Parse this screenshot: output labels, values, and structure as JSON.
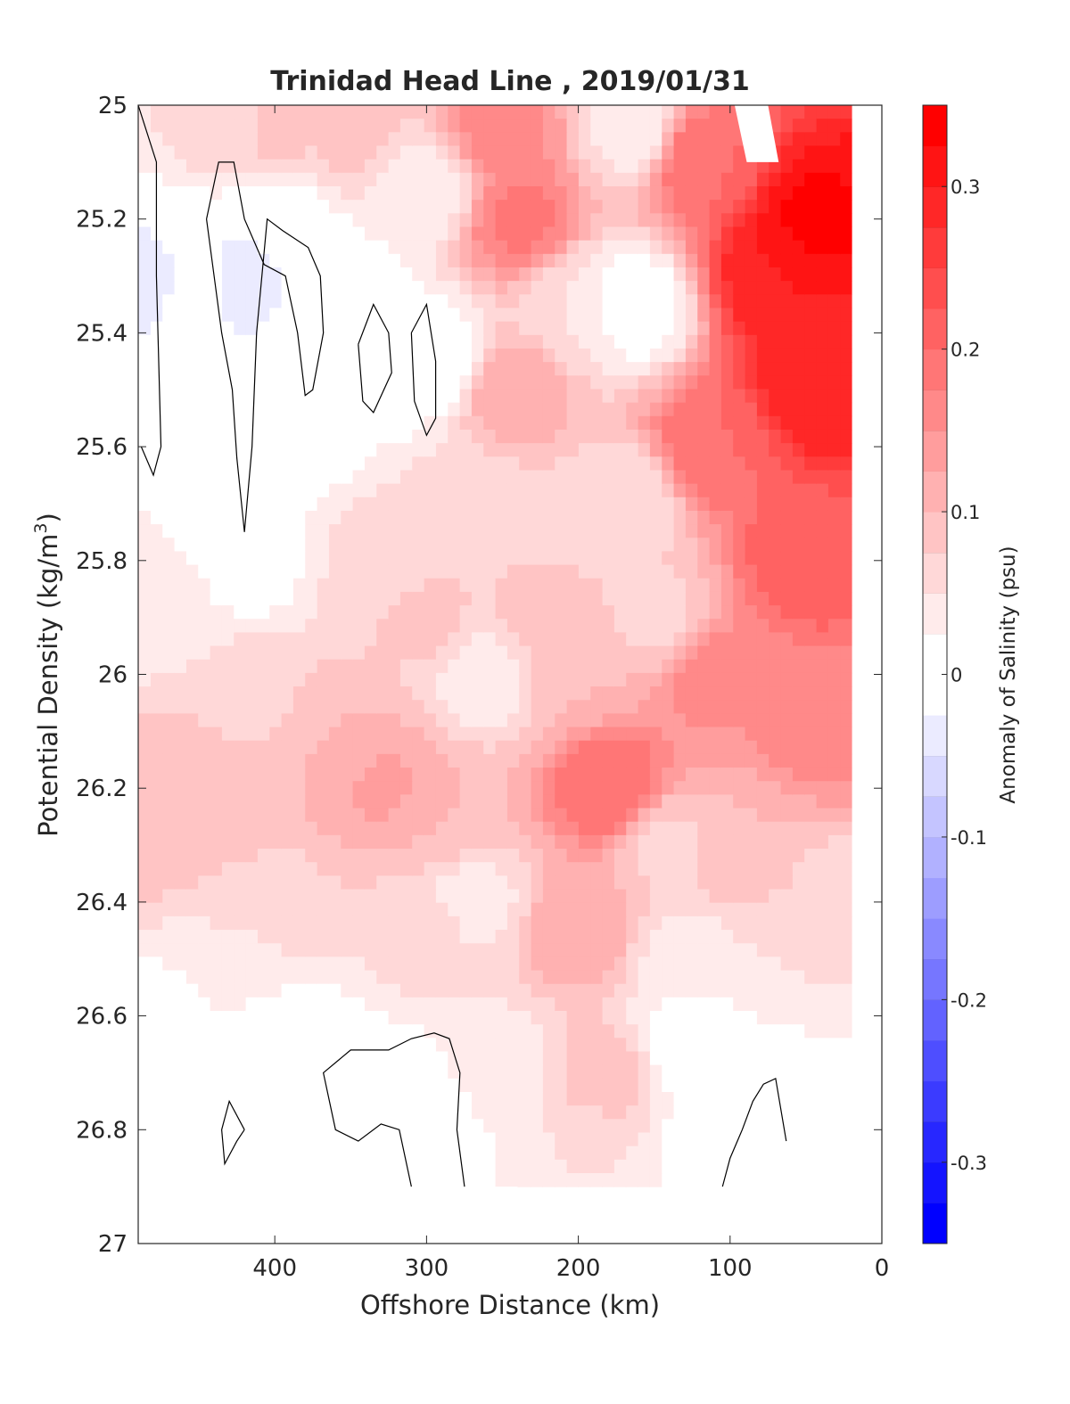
{
  "chart_data": {
    "type": "heatmap",
    "title": "Trinidad Head Line , 2019/01/31",
    "xlabel": "Offshore Distance (km)",
    "ylabel": "Potential Density (kg/m",
    "ylabel_sup": "3",
    "ylabel_close": ")",
    "xlim": [
      490,
      0
    ],
    "ylim": [
      25,
      27
    ],
    "y_reversed": true,
    "x_reversed": true,
    "xticks": [
      400,
      300,
      200,
      100,
      0
    ],
    "xtick_labels": [
      "400",
      "300",
      "200",
      "100",
      "0"
    ],
    "yticks": [
      25,
      25.2,
      25.4,
      25.6,
      25.8,
      26,
      26.2,
      26.4,
      26.6,
      26.8,
      27
    ],
    "ytick_labels": [
      "25",
      "25.2",
      "25.4",
      "25.6",
      "25.8",
      "26",
      "26.2",
      "26.4",
      "26.6",
      "26.8",
      "27"
    ],
    "data_x_extent": [
      20,
      490
    ],
    "data_y_extent": [
      25,
      26.9
    ],
    "grid": false,
    "colorbar": {
      "label": "Anomaly of Salinity (psu)",
      "range": [
        -0.35,
        0.35
      ],
      "levels": 28,
      "ticks": [
        0.3,
        0.2,
        0.1,
        0,
        -0.1,
        -0.2,
        -0.3
      ],
      "tick_labels": [
        "0.3",
        "0.2",
        "0.1",
        "0",
        "-0.1",
        "-0.2",
        "-0.3"
      ],
      "colors": {
        "low": "#0000ff",
        "mid": "#ffffff",
        "high": "#ff0000"
      }
    },
    "zero_contour_color": "#000000",
    "anchor_points": [
      {
        "x": 485,
        "y": 25.3,
        "v": -0.03
      },
      {
        "x": 485,
        "y": 26.25,
        "v": 0.1
      },
      {
        "x": 470,
        "y": 25.9,
        "v": 0.04
      },
      {
        "x": 445,
        "y": 25.3,
        "v": 0.0
      },
      {
        "x": 425,
        "y": 25.3,
        "v": -0.05
      },
      {
        "x": 400,
        "y": 25.2,
        "v": 0.0
      },
      {
        "x": 400,
        "y": 25.6,
        "v": 0.0
      },
      {
        "x": 430,
        "y": 25.05,
        "v": 0.06
      },
      {
        "x": 400,
        "y": 25.05,
        "v": 0.08
      },
      {
        "x": 350,
        "y": 25.05,
        "v": 0.08
      },
      {
        "x": 360,
        "y": 25.35,
        "v": 0.0
      },
      {
        "x": 330,
        "y": 25.45,
        "v": 0.0
      },
      {
        "x": 295,
        "y": 25.45,
        "v": 0.0
      },
      {
        "x": 300,
        "y": 25.15,
        "v": 0.03
      },
      {
        "x": 420,
        "y": 25.8,
        "v": 0.01
      },
      {
        "x": 330,
        "y": 25.8,
        "v": 0.06
      },
      {
        "x": 300,
        "y": 25.9,
        "v": 0.08
      },
      {
        "x": 420,
        "y": 26.05,
        "v": 0.07
      },
      {
        "x": 440,
        "y": 26.2,
        "v": 0.1
      },
      {
        "x": 330,
        "y": 26.2,
        "v": 0.13
      },
      {
        "x": 360,
        "y": 26.15,
        "v": 0.1
      },
      {
        "x": 290,
        "y": 26.25,
        "v": 0.1
      },
      {
        "x": 400,
        "y": 26.4,
        "v": 0.07
      },
      {
        "x": 300,
        "y": 26.45,
        "v": 0.06
      },
      {
        "x": 420,
        "y": 26.52,
        "v": 0.04
      },
      {
        "x": 400,
        "y": 26.63,
        "v": 0.0
      },
      {
        "x": 350,
        "y": 26.75,
        "v": -0.01
      },
      {
        "x": 310,
        "y": 26.8,
        "v": -0.01
      },
      {
        "x": 430,
        "y": 26.78,
        "v": -0.01
      },
      {
        "x": 470,
        "y": 26.6,
        "v": 0.02
      },
      {
        "x": 270,
        "y": 26.4,
        "v": 0.04
      },
      {
        "x": 260,
        "y": 26.0,
        "v": 0.03
      },
      {
        "x": 255,
        "y": 26.7,
        "v": 0.03
      },
      {
        "x": 270,
        "y": 25.7,
        "v": 0.06
      },
      {
        "x": 240,
        "y": 25.2,
        "v": 0.18
      },
      {
        "x": 250,
        "y": 25.05,
        "v": 0.16
      },
      {
        "x": 245,
        "y": 25.5,
        "v": 0.12
      },
      {
        "x": 230,
        "y": 25.9,
        "v": 0.08
      },
      {
        "x": 210,
        "y": 26.0,
        "v": 0.1
      },
      {
        "x": 180,
        "y": 26.2,
        "v": 0.2
      },
      {
        "x": 200,
        "y": 26.45,
        "v": 0.12
      },
      {
        "x": 180,
        "y": 26.7,
        "v": 0.09
      },
      {
        "x": 200,
        "y": 26.85,
        "v": 0.05
      },
      {
        "x": 200,
        "y": 25.35,
        "v": 0.05
      },
      {
        "x": 165,
        "y": 25.35,
        "v": 0.0
      },
      {
        "x": 165,
        "y": 25.05,
        "v": 0.04
      },
      {
        "x": 170,
        "y": 25.7,
        "v": 0.05
      },
      {
        "x": 150,
        "y": 25.9,
        "v": 0.07
      },
      {
        "x": 140,
        "y": 26.3,
        "v": 0.07
      },
      {
        "x": 130,
        "y": 26.5,
        "v": 0.04
      },
      {
        "x": 130,
        "y": 26.65,
        "v": 0.0
      },
      {
        "x": 100,
        "y": 26.8,
        "v": 0.0
      },
      {
        "x": 75,
        "y": 26.75,
        "v": 0.0
      },
      {
        "x": 60,
        "y": 26.8,
        "v": 0.0
      },
      {
        "x": 120,
        "y": 25.1,
        "v": 0.2
      },
      {
        "x": 110,
        "y": 25.6,
        "v": 0.2
      },
      {
        "x": 110,
        "y": 26.0,
        "v": 0.16
      },
      {
        "x": 90,
        "y": 26.3,
        "v": 0.1
      },
      {
        "x": 70,
        "y": 25.3,
        "v": 0.3
      },
      {
        "x": 45,
        "y": 25.2,
        "v": 0.33
      },
      {
        "x": 45,
        "y": 25.5,
        "v": 0.3
      },
      {
        "x": 50,
        "y": 25.8,
        "v": 0.22
      },
      {
        "x": 45,
        "y": 26.1,
        "v": 0.16
      },
      {
        "x": 30,
        "y": 26.4,
        "v": 0.06
      },
      {
        "x": 60,
        "y": 26.5,
        "v": 0.05
      }
    ],
    "zero_contours": [
      [
        [
          490,
          25.0
        ],
        [
          478,
          25.1
        ],
        [
          478,
          25.3
        ],
        [
          475,
          25.6
        ],
        [
          480,
          25.65
        ],
        [
          488,
          25.6
        ]
      ],
      [
        [
          445,
          25.2
        ],
        [
          437,
          25.1
        ],
        [
          427,
          25.1
        ],
        [
          420,
          25.2
        ],
        [
          407,
          25.28
        ],
        [
          393,
          25.3
        ],
        [
          385,
          25.4
        ],
        [
          380,
          25.51
        ],
        [
          375,
          25.5
        ],
        [
          368,
          25.4
        ],
        [
          370,
          25.3
        ],
        [
          378,
          25.25
        ],
        [
          395,
          25.22
        ],
        [
          405,
          25.2
        ],
        [
          412,
          25.4
        ],
        [
          415,
          25.6
        ],
        [
          420,
          25.75
        ],
        [
          425,
          25.62
        ],
        [
          428,
          25.5
        ],
        [
          435,
          25.4
        ],
        [
          440,
          25.3
        ],
        [
          445,
          25.2
        ]
      ],
      [
        [
          345,
          25.42
        ],
        [
          335,
          25.35
        ],
        [
          325,
          25.4
        ],
        [
          323,
          25.47
        ],
        [
          335,
          25.54
        ],
        [
          342,
          25.52
        ],
        [
          345,
          25.42
        ]
      ],
      [
        [
          310,
          25.4
        ],
        [
          300,
          25.35
        ],
        [
          294,
          25.45
        ],
        [
          294,
          25.55
        ],
        [
          300,
          25.58
        ],
        [
          308,
          25.52
        ],
        [
          310,
          25.4
        ]
      ],
      [
        [
          420,
          26.8
        ],
        [
          430,
          26.75
        ],
        [
          435,
          26.8
        ],
        [
          433,
          26.86
        ],
        [
          425,
          26.82
        ],
        [
          420,
          26.8
        ]
      ],
      [
        [
          310,
          26.9
        ],
        [
          318,
          26.8
        ],
        [
          330,
          26.79
        ],
        [
          345,
          26.82
        ],
        [
          360,
          26.8
        ],
        [
          368,
          26.7
        ],
        [
          350,
          26.66
        ],
        [
          325,
          26.66
        ],
        [
          310,
          26.64
        ],
        [
          295,
          26.63
        ],
        [
          285,
          26.64
        ],
        [
          278,
          26.7
        ],
        [
          280,
          26.8
        ],
        [
          275,
          26.9
        ]
      ],
      [
        [
          105,
          26.9
        ],
        [
          100,
          26.85
        ],
        [
          92,
          26.8
        ],
        [
          85,
          26.75
        ],
        [
          78,
          26.72
        ],
        [
          70,
          26.71
        ],
        [
          63,
          26.82
        ]
      ]
    ],
    "masked": [
      {
        "kind": "trapezoid",
        "points": [
          [
            97,
            25.0
          ],
          [
            75,
            25.0
          ],
          [
            68,
            25.1
          ],
          [
            89,
            25.1
          ]
        ]
      },
      {
        "kind": "bottom-left",
        "x_from": 490,
        "x_to": 240,
        "y_from": 26.9,
        "y_to": 27.0
      },
      {
        "kind": "bottom-right",
        "x_from": 130,
        "x_to": 0,
        "y_from": 26.9,
        "y_to": 27.0
      }
    ]
  }
}
